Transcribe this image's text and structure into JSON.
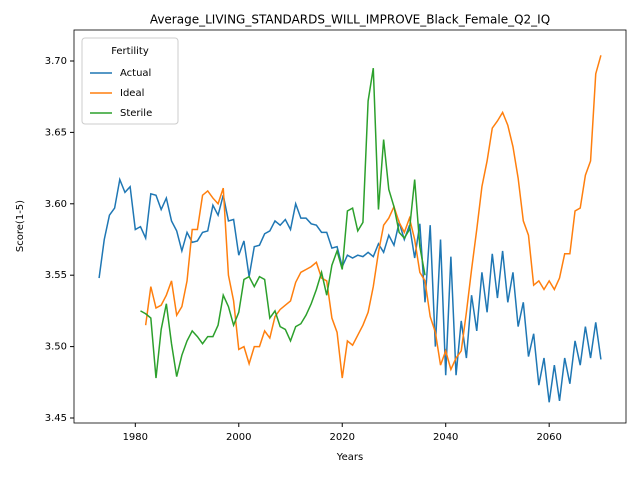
{
  "chart_data": {
    "type": "line",
    "title": "Average_LIVING_STANDARDS_WILL_IMPROVE_Black_Female_Q2_IQ",
    "x_label": "Years",
    "y_label": "Score(1-5)",
    "legend": {
      "title": "Fertility",
      "loc": "upper left"
    },
    "xlim": [
      1968.15,
      2074.85
    ],
    "xticks": [
      1980,
      2000,
      2020,
      2040,
      2060
    ],
    "ylim": [
      3.4465,
      3.7217
    ],
    "yticks": [
      3.45,
      {
        "value": 3.5,
        "label": "3.50"
      },
      3.55,
      {
        "value": 3.6,
        "label": "3.60"
      },
      3.65,
      {
        "value": 3.7,
        "label": "3.70"
      }
    ],
    "x": [
      1973,
      1974,
      1975,
      1976,
      1977,
      1978,
      1979,
      1980,
      1981,
      1982,
      1983,
      1984,
      1985,
      1986,
      1987,
      1988,
      1989,
      1990,
      1991,
      1992,
      1993,
      1994,
      1995,
      1996,
      1997,
      1998,
      1999,
      2000,
      2001,
      2002,
      2003,
      2004,
      2005,
      2006,
      2007,
      2008,
      2009,
      2010,
      2011,
      2012,
      2013,
      2014,
      2015,
      2016,
      2017,
      2018,
      2019,
      2020,
      2021,
      2022,
      2023,
      2024,
      2025,
      2026,
      2027,
      2028,
      2029,
      2030,
      2031,
      2032,
      2033,
      2034,
      2035,
      2036,
      2037,
      2038,
      2039,
      2040,
      2041,
      2042,
      2043,
      2044,
      2045,
      2046,
      2047,
      2048,
      2049,
      2050,
      2051,
      2052,
      2053,
      2054,
      2055,
      2056,
      2057,
      2058,
      2059,
      2060,
      2061,
      2062,
      2063,
      2064,
      2065,
      2066,
      2067,
      2068,
      2069,
      2070
    ],
    "series": [
      {
        "name": "Actual",
        "color": "#1f77b4",
        "values": [
          3.548,
          3.575,
          3.592,
          3.597,
          3.617,
          3.608,
          3.612,
          3.582,
          3.584,
          3.576,
          3.607,
          3.606,
          3.596,
          3.604,
          3.588,
          3.581,
          3.567,
          3.58,
          3.573,
          3.574,
          3.58,
          3.581,
          3.599,
          3.592,
          3.606,
          3.588,
          3.589,
          3.564,
          3.574,
          3.549,
          3.57,
          3.571,
          3.579,
          3.581,
          3.588,
          3.585,
          3.589,
          3.582,
          3.6,
          3.59,
          3.59,
          3.586,
          3.585,
          3.58,
          3.58,
          3.569,
          3.57,
          3.556,
          3.564,
          3.562,
          3.564,
          3.563,
          3.566,
          3.563,
          3.572,
          3.566,
          3.578,
          3.571,
          3.587,
          3.575,
          3.585,
          3.562,
          3.586,
          3.531,
          3.585,
          3.5,
          3.575,
          3.48,
          3.563,
          3.48,
          3.518,
          3.492,
          3.536,
          3.511,
          3.552,
          3.524,
          3.565,
          3.534,
          3.567,
          3.531,
          3.552,
          3.514,
          3.531,
          3.493,
          3.509,
          3.473,
          3.492,
          3.461,
          3.487,
          3.462,
          3.492,
          3.474,
          3.504,
          3.487,
          3.514,
          3.492,
          3.517,
          3.491
        ]
      },
      {
        "name": "Ideal",
        "color": "#ff7f0e",
        "values": [
          null,
          null,
          null,
          null,
          null,
          null,
          null,
          null,
          null,
          3.515,
          3.542,
          3.527,
          3.529,
          3.536,
          3.546,
          3.522,
          3.528,
          3.546,
          3.582,
          3.582,
          3.606,
          3.609,
          3.604,
          3.6,
          3.611,
          3.55,
          3.532,
          3.498,
          3.5,
          3.488,
          3.5,
          3.5,
          3.511,
          3.506,
          3.521,
          3.526,
          3.529,
          3.532,
          3.545,
          3.552,
          3.554,
          3.556,
          3.559,
          3.548,
          3.546,
          3.52,
          3.51,
          3.478,
          3.504,
          3.501,
          3.508,
          3.515,
          3.524,
          3.542,
          3.566,
          3.585,
          3.59,
          3.598,
          3.587,
          3.58,
          3.59,
          3.575,
          3.552,
          3.546,
          3.521,
          3.51,
          3.487,
          3.497,
          3.484,
          3.492,
          3.497,
          3.524,
          3.554,
          3.582,
          3.612,
          3.63,
          3.653,
          3.658,
          3.664,
          3.655,
          3.64,
          3.618,
          3.588,
          3.578,
          3.543,
          3.546,
          3.54,
          3.546,
          3.54,
          3.548,
          3.565,
          3.565,
          3.595,
          3.597,
          3.62,
          3.63,
          3.691,
          3.704
        ]
      },
      {
        "name": "Sterile",
        "color": "#2ca02c",
        "values": [
          null,
          null,
          null,
          null,
          null,
          null,
          null,
          null,
          3.525,
          3.523,
          3.52,
          3.478,
          3.512,
          3.53,
          3.502,
          3.479,
          3.494,
          3.504,
          3.511,
          3.507,
          3.502,
          3.507,
          3.507,
          3.515,
          3.536,
          3.528,
          3.515,
          3.524,
          3.547,
          3.549,
          3.542,
          3.549,
          3.547,
          3.52,
          3.525,
          3.514,
          3.512,
          3.504,
          3.514,
          3.516,
          3.522,
          3.53,
          3.54,
          3.552,
          3.536,
          3.557,
          3.567,
          3.554,
          3.595,
          3.597,
          3.581,
          3.587,
          3.672,
          3.695,
          3.596,
          3.645,
          3.61,
          3.598,
          3.58,
          3.576,
          3.582,
          3.617,
          3.57,
          3.55,
          null,
          null,
          null,
          null,
          null,
          null,
          null,
          null,
          null,
          null,
          null,
          null,
          null,
          null,
          null,
          null,
          null,
          null,
          null,
          null,
          null,
          null,
          null,
          null,
          null,
          null,
          null,
          null,
          null,
          null,
          null,
          null,
          null,
          null
        ]
      }
    ]
  }
}
